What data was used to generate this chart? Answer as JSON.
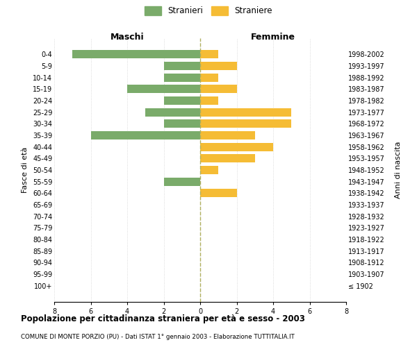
{
  "age_groups": [
    "0-4",
    "5-9",
    "10-14",
    "15-19",
    "20-24",
    "25-29",
    "30-34",
    "35-39",
    "40-44",
    "45-49",
    "50-54",
    "55-59",
    "60-64",
    "65-69",
    "70-74",
    "75-79",
    "80-84",
    "85-89",
    "90-94",
    "95-99",
    "100+"
  ],
  "birth_years": [
    "1998-2002",
    "1993-1997",
    "1988-1992",
    "1983-1987",
    "1978-1982",
    "1973-1977",
    "1968-1972",
    "1963-1967",
    "1958-1962",
    "1953-1957",
    "1948-1952",
    "1943-1947",
    "1938-1942",
    "1933-1937",
    "1928-1932",
    "1923-1927",
    "1918-1922",
    "1913-1917",
    "1908-1912",
    "1903-1907",
    "≤ 1902"
  ],
  "maschi": [
    7,
    2,
    2,
    4,
    2,
    3,
    2,
    6,
    0,
    0,
    0,
    2,
    0,
    0,
    0,
    0,
    0,
    0,
    0,
    0,
    0
  ],
  "femmine": [
    1,
    2,
    1,
    2,
    1,
    5,
    5,
    3,
    4,
    3,
    1,
    0,
    2,
    0,
    0,
    0,
    0,
    0,
    0,
    0,
    0
  ],
  "maschi_color": "#7aab6a",
  "femmine_color": "#f5bc35",
  "title": "Popolazione per cittadinanza straniera per età e sesso - 2003",
  "subtitle": "COMUNE DI MONTE PORZIO (PU) - Dati ISTAT 1° gennaio 2003 - Elaborazione TUTTITALIA.IT",
  "ylabel_left": "Fasce di età",
  "ylabel_right": "Anni di nascita",
  "xlabel_left": "Maschi",
  "xlabel_right": "Femmine",
  "xlim": 8,
  "legend_maschi": "Stranieri",
  "legend_femmine": "Straniere",
  "background_color": "#ffffff",
  "grid_color": "#d0d0d0"
}
